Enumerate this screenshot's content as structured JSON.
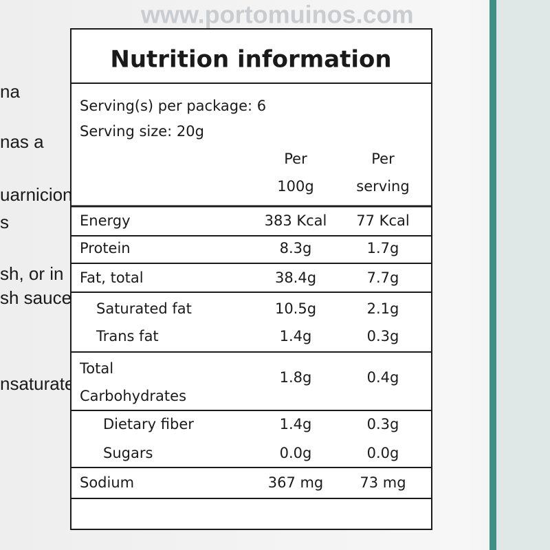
{
  "background": {
    "website": "www.portomuinos.com",
    "left_fragments": [
      "na",
      "nas a",
      "uarniciones",
      "s",
      "sh, or in",
      "sh sauce",
      "nsaturated fats"
    ]
  },
  "panel": {
    "title": "Nutrition information",
    "servings_per_package": "Serving(s) per package: 6",
    "serving_size": "Serving size: 20g",
    "header": {
      "per_100g": [
        "Per",
        "100g"
      ],
      "per_serving": [
        "Per",
        "serving"
      ]
    },
    "rows": [
      {
        "label": [
          "Energy"
        ],
        "per_100g": "383 Kcal",
        "per_serving": "77 Kcal",
        "indent": 0
      },
      {
        "label": [
          "Protein"
        ],
        "per_100g": "8.3g",
        "per_serving": "1.7g",
        "indent": 0
      },
      {
        "label": [
          "Fat, total"
        ],
        "per_100g": "38.4g",
        "per_serving": "7.7g",
        "indent": 0
      },
      {
        "label": [
          "Saturated fat"
        ],
        "per_100g": "10.5g",
        "per_serving": "2.1g",
        "indent": 1
      },
      {
        "label": [
          "Trans fat"
        ],
        "per_100g": "1.4g",
        "per_serving": "0.3g",
        "indent": 1
      },
      {
        "label": [
          "Total",
          "Carbohydrates"
        ],
        "per_100g": "1.8g",
        "per_serving": "0.4g",
        "indent": 0
      },
      {
        "label": [
          "Dietary fiber"
        ],
        "per_100g": "1.4g",
        "per_serving": "0.3g",
        "indent": 2
      },
      {
        "label": [
          "Sugars"
        ],
        "per_100g": "0.0g",
        "per_serving": "0.0g",
        "indent": 2
      },
      {
        "label": [
          "Sodium"
        ],
        "per_100g": "367 mg",
        "per_serving": "73 mg",
        "indent": 0
      }
    ]
  }
}
